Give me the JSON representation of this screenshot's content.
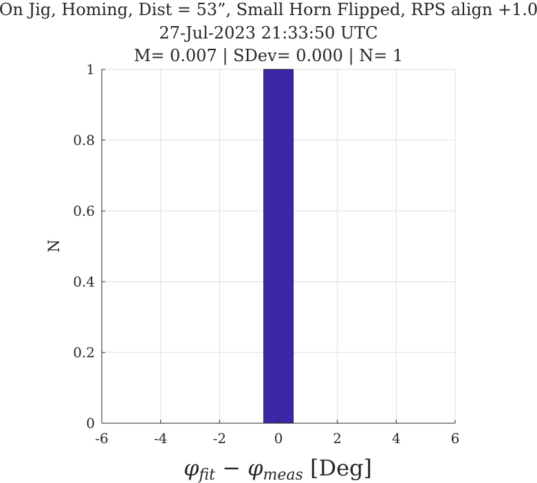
{
  "title": {
    "line1": "On Jig, Homing, Dist = 53”, Small Horn Flipped, RPS align +1.0",
    "line2": "27-Jul-2023 21:33:50 UTC",
    "line3": "M= 0.007 | SDev= 0.000 | N= 1"
  },
  "chart_data": {
    "type": "bar",
    "title": "On Jig, Homing, Dist = 53”, Small Horn Flipped, RPS align +1.0",
    "subtitle": "27-Jul-2023 21:33:50 UTC | M= 0.007 | SDev= 0.000 | N= 1",
    "xlabel": "φfit − φmeas [Deg]",
    "xlabel_parts": {
      "phi": "φ",
      "sub1": "fit",
      "minus": " − ",
      "sub2": "meas",
      "unit": " [Deg]"
    },
    "ylabel": "N",
    "xlim": [
      -6,
      6
    ],
    "ylim": [
      0,
      1
    ],
    "xticks": [
      -6,
      -4,
      -2,
      0,
      2,
      4,
      6
    ],
    "yticks": [
      0,
      0.2,
      0.4,
      0.6,
      0.8,
      1
    ],
    "xtick_labels": [
      "-6",
      "-4",
      "-2",
      "0",
      "2",
      "4",
      "6"
    ],
    "ytick_labels": [
      "0",
      "0.2",
      "0.4",
      "0.6",
      "0.8",
      "1"
    ],
    "bin_width": 1,
    "bins": [
      {
        "center": -5,
        "value": 0
      },
      {
        "center": -4,
        "value": 0
      },
      {
        "center": -3,
        "value": 0
      },
      {
        "center": -2,
        "value": 0
      },
      {
        "center": -1,
        "value": 0
      },
      {
        "center": 0,
        "value": 1
      },
      {
        "center": 1,
        "value": 0
      },
      {
        "center": 2,
        "value": 0
      },
      {
        "center": 3,
        "value": 0
      },
      {
        "center": 4,
        "value": 0
      }
    ],
    "bar_color": "#3b26a8",
    "grid": true
  }
}
